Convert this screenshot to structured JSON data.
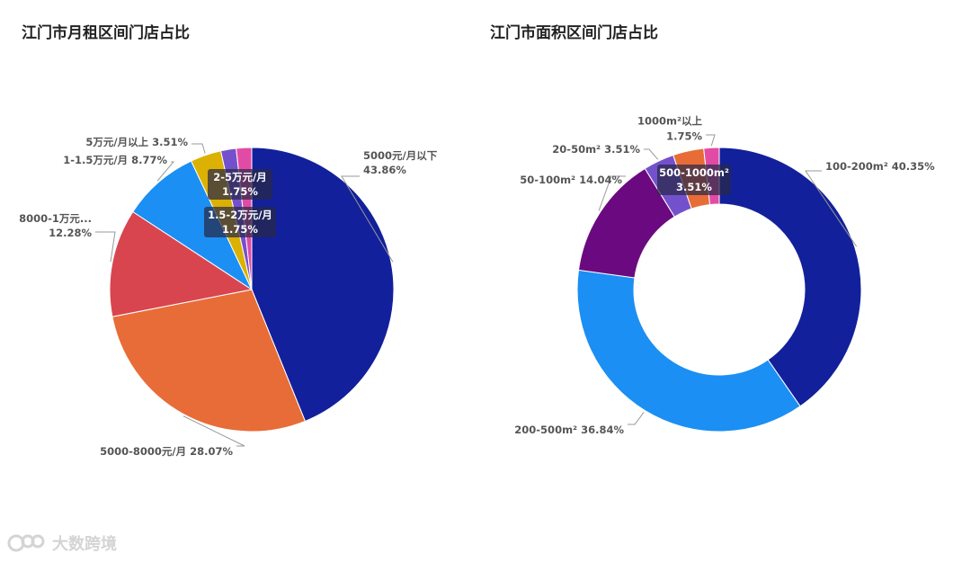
{
  "chart_data": [
    {
      "type": "pie",
      "title": "江门市月租区间门店占比",
      "slices": [
        {
          "label": "5000元/月以下",
          "value": 43.86,
          "text": "5000元/月以下\n43.86%",
          "color": "#13209b"
        },
        {
          "label": "5000-8000元/月",
          "value": 28.07,
          "text": "5000-8000元/月 28.07%",
          "color": "#e86c37"
        },
        {
          "label": "8000-1万元...",
          "value": 12.28,
          "text": "8000-1万元...\n12.28%",
          "color": "#d9454f"
        },
        {
          "label": "1-1.5万元/月",
          "value": 8.77,
          "text": "1-1.5万元/月 8.77%",
          "color": "#1b8ff3"
        },
        {
          "label": "5万元/月以上",
          "value": 3.51,
          "text": "5万元/月以上 3.51%",
          "color": "#dbb104"
        },
        {
          "label": "1.5-2万元/月",
          "value": 1.75,
          "text": "1.5-2万元/月\n1.75%",
          "color": "#7451cc"
        },
        {
          "label": "2-5万元/月",
          "value": 1.75,
          "text": "2-5万元/月\n1.75%",
          "color": "#e14ba5"
        }
      ]
    },
    {
      "type": "donut",
      "title": "江门市面积区间门店占比",
      "slices": [
        {
          "label": "100-200m²",
          "value": 40.35,
          "text": "100-200m² 40.35%",
          "color": "#13209b"
        },
        {
          "label": "200-500m²",
          "value": 36.84,
          "text": "200-500m² 36.84%",
          "color": "#1b8ff3"
        },
        {
          "label": "50-100m²",
          "value": 14.04,
          "text": "50-100m² 14.04%",
          "color": "#6b0a80"
        },
        {
          "label": "20-50m²",
          "value": 3.51,
          "text": "20-50m² 3.51%",
          "color": "#7451cc"
        },
        {
          "label": "500-1000m²",
          "value": 3.51,
          "text": "500-1000m²\n3.51%",
          "color": "#e86c37"
        },
        {
          "label": "1000m²以上",
          "value": 1.75,
          "text": "1000m²以上\n1.75%",
          "color": "#e14ba5"
        }
      ]
    }
  ],
  "watermark": {
    "text": "大数跨境",
    "logo_icon": "brand-logo-icon"
  }
}
